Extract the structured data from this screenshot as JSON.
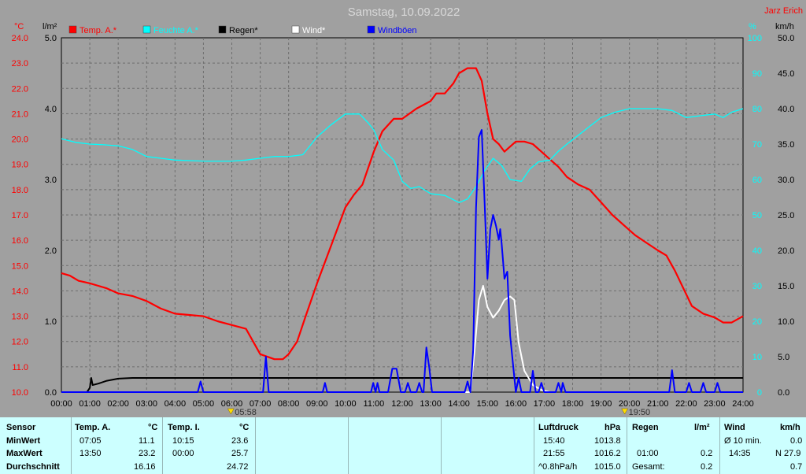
{
  "title": "Samstag, 10.09.2022",
  "author": "Jarz Erich",
  "units": {
    "left_temp": "°C",
    "left_rain": "l/m²",
    "right_pct": "%",
    "right_wind": "km/h"
  },
  "legend": [
    {
      "label": "Temp. A.*",
      "color": "#ff0000"
    },
    {
      "label": "Feuchte A.*",
      "color": "#00ffff"
    },
    {
      "label": "Regen*",
      "color": "#000000"
    },
    {
      "label": "Wind*",
      "color": "#ffffff"
    },
    {
      "label": "Windböen",
      "color": "#0000ff"
    }
  ],
  "sun": {
    "rise": "05:58",
    "set": "19:50"
  },
  "chart_data": {
    "type": "line",
    "x_ticks": [
      "00:00",
      "01:00",
      "02:00",
      "03:00",
      "04:00",
      "05:00",
      "06:00",
      "07:00",
      "08:00",
      "09:00",
      "10:00",
      "11:00",
      "12:00",
      "13:00",
      "14:00",
      "15:00",
      "16:00",
      "17:00",
      "18:00",
      "19:00",
      "20:00",
      "21:00",
      "22:00",
      "23:00",
      "24:00"
    ],
    "temp_ticks": [
      "10.0",
      "11.0",
      "12.0",
      "13.0",
      "14.0",
      "15.0",
      "16.0",
      "17.0",
      "18.0",
      "19.0",
      "20.0",
      "21.0",
      "22.0",
      "23.0",
      "24.0"
    ],
    "rain_ticks": [
      "0.0",
      "1.0",
      "2.0",
      "3.0",
      "4.0",
      "5.0"
    ],
    "pct_ticks": [
      "0",
      "10",
      "20",
      "30",
      "40",
      "50",
      "60",
      "70",
      "80",
      "90",
      "100"
    ],
    "wind_ticks": [
      "0.0",
      "5.0",
      "10.0",
      "15.0",
      "20.0",
      "25.0",
      "30.0",
      "35.0",
      "40.0",
      "45.0",
      "50.0"
    ],
    "xlim": [
      0,
      24
    ],
    "temp_ylim": [
      10,
      24
    ],
    "rain_ylim": [
      0,
      5
    ],
    "pct_ylim": [
      0,
      100
    ],
    "wind_ylim": [
      0,
      50
    ],
    "series": [
      {
        "name": "Temp. A.*",
        "axis": "temp",
        "color": "#ff0000",
        "points": [
          [
            0,
            14.7
          ],
          [
            0.3,
            14.6
          ],
          [
            0.6,
            14.4
          ],
          [
            1,
            14.3
          ],
          [
            1.3,
            14.2
          ],
          [
            1.6,
            14.1
          ],
          [
            2,
            13.9
          ],
          [
            2.5,
            13.8
          ],
          [
            3,
            13.6
          ],
          [
            3.5,
            13.3
          ],
          [
            4,
            13.1
          ],
          [
            4.5,
            13.05
          ],
          [
            5,
            13.0
          ],
          [
            5.5,
            12.8
          ],
          [
            6,
            12.65
          ],
          [
            6.5,
            12.5
          ],
          [
            7,
            11.5
          ],
          [
            7.5,
            11.3
          ],
          [
            7.8,
            11.3
          ],
          [
            8,
            11.5
          ],
          [
            8.3,
            12.0
          ],
          [
            8.6,
            13.0
          ],
          [
            9,
            14.3
          ],
          [
            9.5,
            15.8
          ],
          [
            10,
            17.3
          ],
          [
            10.3,
            17.8
          ],
          [
            10.6,
            18.2
          ],
          [
            11,
            19.5
          ],
          [
            11.3,
            20.3
          ],
          [
            11.7,
            20.8
          ],
          [
            12,
            20.8
          ],
          [
            12.5,
            21.2
          ],
          [
            13,
            21.5
          ],
          [
            13.2,
            21.8
          ],
          [
            13.5,
            21.8
          ],
          [
            13.8,
            22.2
          ],
          [
            14,
            22.6
          ],
          [
            14.3,
            22.8
          ],
          [
            14.6,
            22.8
          ],
          [
            14.8,
            22.3
          ],
          [
            15,
            21.0
          ],
          [
            15.2,
            20.0
          ],
          [
            15.4,
            19.8
          ],
          [
            15.6,
            19.5
          ],
          [
            15.8,
            19.7
          ],
          [
            16,
            19.9
          ],
          [
            16.3,
            19.9
          ],
          [
            16.6,
            19.8
          ],
          [
            16.9,
            19.5
          ],
          [
            17.2,
            19.2
          ],
          [
            17.5,
            18.9
          ],
          [
            17.8,
            18.5
          ],
          [
            18.2,
            18.2
          ],
          [
            18.6,
            18.0
          ],
          [
            19,
            17.5
          ],
          [
            19.4,
            17.0
          ],
          [
            19.8,
            16.6
          ],
          [
            20.2,
            16.2
          ],
          [
            20.6,
            15.9
          ],
          [
            21,
            15.6
          ],
          [
            21.3,
            15.4
          ],
          [
            21.6,
            14.8
          ],
          [
            21.9,
            14.1
          ],
          [
            22.2,
            13.4
          ],
          [
            22.6,
            13.1
          ],
          [
            23,
            12.95
          ],
          [
            23.3,
            12.75
          ],
          [
            23.6,
            12.75
          ],
          [
            24,
            13.0
          ]
        ]
      },
      {
        "name": "Feuchte A.*",
        "axis": "pct",
        "color": "#00ffff",
        "points": [
          [
            0,
            71.5
          ],
          [
            0.5,
            70.5
          ],
          [
            1,
            70.0
          ],
          [
            1.5,
            69.8
          ],
          [
            2,
            69.5
          ],
          [
            2.5,
            68.5
          ],
          [
            3,
            66.5
          ],
          [
            3.5,
            66.0
          ],
          [
            4,
            65.5
          ],
          [
            5,
            65.2
          ],
          [
            6,
            65.2
          ],
          [
            6.5,
            65.5
          ],
          [
            7,
            66.0
          ],
          [
            7.5,
            66.5
          ],
          [
            8,
            66.5
          ],
          [
            8.5,
            67.0
          ],
          [
            9,
            72.0
          ],
          [
            9.5,
            75.5
          ],
          [
            10,
            78.5
          ],
          [
            10.5,
            78.5
          ],
          [
            10.8,
            76.0
          ],
          [
            11,
            74.0
          ],
          [
            11.3,
            68.5
          ],
          [
            11.7,
            65.5
          ],
          [
            12,
            59.5
          ],
          [
            12.3,
            57.5
          ],
          [
            12.6,
            58.0
          ],
          [
            13,
            56.0
          ],
          [
            13.5,
            55.5
          ],
          [
            14,
            53.5
          ],
          [
            14.3,
            54.5
          ],
          [
            14.6,
            58.0
          ],
          [
            14.9,
            62.5
          ],
          [
            15.2,
            66.0
          ],
          [
            15.5,
            64.0
          ],
          [
            15.8,
            60.0
          ],
          [
            16.2,
            59.5
          ],
          [
            16.5,
            63.0
          ],
          [
            16.8,
            65.0
          ],
          [
            17.2,
            65.5
          ],
          [
            17.5,
            68.0
          ],
          [
            17.8,
            70.0
          ],
          [
            18.2,
            72.5
          ],
          [
            18.6,
            75.0
          ],
          [
            19,
            77.5
          ],
          [
            19.5,
            79.0
          ],
          [
            20,
            80.0
          ],
          [
            20.5,
            80.0
          ],
          [
            21,
            80.0
          ],
          [
            21.5,
            79.5
          ],
          [
            22,
            77.5
          ],
          [
            22.5,
            78.0
          ],
          [
            23,
            78.5
          ],
          [
            23.3,
            77.5
          ],
          [
            23.6,
            79.0
          ],
          [
            24,
            80.0
          ]
        ]
      },
      {
        "name": "Regen*",
        "axis": "rain",
        "color": "#000000",
        "points": [
          [
            0,
            0.0
          ],
          [
            0.9,
            0.0
          ],
          [
            1.0,
            0.06
          ],
          [
            1.05,
            0.2
          ],
          [
            1.1,
            0.1
          ],
          [
            1.3,
            0.12
          ],
          [
            1.6,
            0.16
          ],
          [
            2,
            0.19
          ],
          [
            2.5,
            0.2
          ],
          [
            24,
            0.2
          ]
        ]
      },
      {
        "name": "Wind*",
        "axis": "wind",
        "color": "#ffffff",
        "points": [
          [
            14.2,
            0
          ],
          [
            14.4,
            0
          ],
          [
            14.55,
            6
          ],
          [
            14.7,
            13
          ],
          [
            14.85,
            15
          ],
          [
            15,
            12
          ],
          [
            15.2,
            10.5
          ],
          [
            15.4,
            11.5
          ],
          [
            15.6,
            13
          ],
          [
            15.8,
            13.5
          ],
          [
            15.95,
            13
          ],
          [
            16.1,
            7
          ],
          [
            16.3,
            3
          ],
          [
            16.6,
            1
          ],
          [
            16.9,
            0.3
          ],
          [
            17.2,
            0
          ]
        ]
      },
      {
        "name": "Windböen",
        "axis": "wind",
        "color": "#0000ff",
        "points": [
          [
            0,
            0
          ],
          [
            4.8,
            0
          ],
          [
            4.9,
            1.5
          ],
          [
            5.0,
            0
          ],
          [
            7.1,
            0
          ],
          [
            7.2,
            5
          ],
          [
            7.3,
            0
          ],
          [
            9.2,
            0
          ],
          [
            9.28,
            1.3
          ],
          [
            9.36,
            0
          ],
          [
            10.9,
            0
          ],
          [
            10.98,
            1.3
          ],
          [
            11.06,
            0
          ],
          [
            11.13,
            1.3
          ],
          [
            11.2,
            0
          ],
          [
            11.5,
            0
          ],
          [
            11.65,
            3.3
          ],
          [
            11.8,
            3.3
          ],
          [
            11.95,
            0
          ],
          [
            12.1,
            0
          ],
          [
            12.2,
            1.3
          ],
          [
            12.3,
            0
          ],
          [
            12.5,
            0
          ],
          [
            12.6,
            1.3
          ],
          [
            12.7,
            0
          ],
          [
            12.75,
            0
          ],
          [
            12.85,
            6.3
          ],
          [
            12.95,
            3.5
          ],
          [
            13.05,
            0
          ],
          [
            14.2,
            0
          ],
          [
            14.3,
            1.5
          ],
          [
            14.4,
            0
          ],
          [
            14.5,
            6
          ],
          [
            14.6,
            26
          ],
          [
            14.7,
            36
          ],
          [
            14.8,
            37
          ],
          [
            14.9,
            27
          ],
          [
            15.0,
            16
          ],
          [
            15.1,
            23
          ],
          [
            15.2,
            25
          ],
          [
            15.3,
            23.5
          ],
          [
            15.4,
            21.5
          ],
          [
            15.45,
            23
          ],
          [
            15.5,
            21
          ],
          [
            15.6,
            16
          ],
          [
            15.7,
            17
          ],
          [
            15.8,
            8
          ],
          [
            15.9,
            4
          ],
          [
            16.0,
            0
          ],
          [
            16.1,
            2
          ],
          [
            16.2,
            0
          ],
          [
            16.5,
            0
          ],
          [
            16.6,
            3
          ],
          [
            16.7,
            0
          ],
          [
            16.8,
            0
          ],
          [
            16.9,
            1.3
          ],
          [
            17.0,
            0
          ],
          [
            17.4,
            0
          ],
          [
            17.5,
            1.3
          ],
          [
            17.6,
            0
          ],
          [
            17.65,
            1.3
          ],
          [
            17.75,
            0
          ],
          [
            21.4,
            0
          ],
          [
            21.5,
            3.1
          ],
          [
            21.6,
            0
          ],
          [
            22,
            0
          ],
          [
            22.1,
            1.3
          ],
          [
            22.2,
            0
          ],
          [
            22.5,
            0
          ],
          [
            22.6,
            1.3
          ],
          [
            22.7,
            0
          ],
          [
            23.0,
            0
          ],
          [
            23.1,
            1.3
          ],
          [
            23.2,
            0
          ],
          [
            24,
            0
          ]
        ]
      }
    ]
  },
  "stats": {
    "row_labels": {
      "header": "Sensor",
      "min": "MinWert",
      "max": "MaxWert",
      "avg": "Durchschnitt"
    },
    "temp_a": {
      "header": "Temp. A.",
      "unit": "°C",
      "min_time": "07:05",
      "min_val": "11.1",
      "max_time": "13:50",
      "max_val": "23.2",
      "avg": "16.16"
    },
    "temp_i": {
      "header": "Temp. I.",
      "unit": "°C",
      "min_time": "10:15",
      "min_val": "23.6",
      "max_time": "00:00",
      "max_val": "25.7",
      "avg": "24.72"
    },
    "pressure": {
      "header": "Luftdruck",
      "unit": "hPa",
      "min_time": "15:40",
      "min_val": "1013.8",
      "max_time": "21:55",
      "max_val": "1016.2",
      "trend_label": "^0.8hPa/h",
      "trend_val": "1015.0"
    },
    "rain": {
      "header": "Regen",
      "unit": "l/m²",
      "r1_time": "01:00",
      "r1_val": "0.2",
      "total_label": "Gesamt:",
      "total_val": "0.2"
    },
    "wind": {
      "header": "Wind",
      "unit": "km/h",
      "avg_label": "Ø 10 min.",
      "avg_val": "0.0",
      "max_time": "14:35",
      "max_val": "N 27.9",
      "r3_val": "0.7"
    }
  }
}
